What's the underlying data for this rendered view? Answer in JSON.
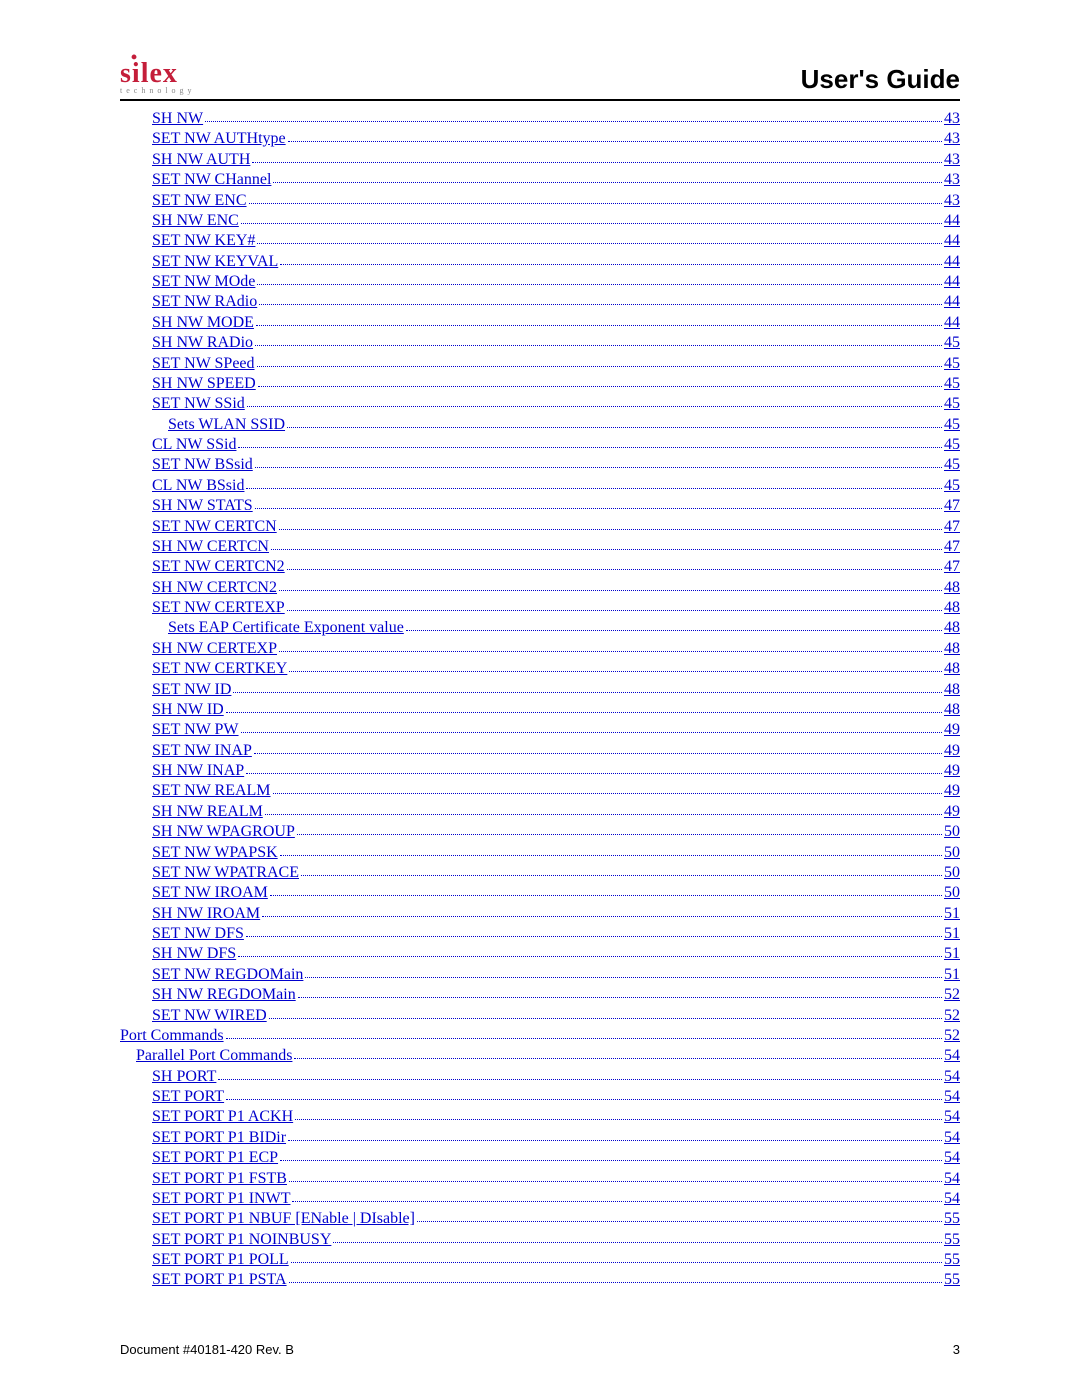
{
  "header": {
    "logo_text": "silex",
    "logo_sub": "technology",
    "title": "User's Guide"
  },
  "link_color": "#0000cc",
  "toc": [
    {
      "label": " SH NW ",
      "page": " 43",
      "indent": 2
    },
    {
      "label": " SET NW AUTHtype ",
      "page": " 43",
      "indent": 2
    },
    {
      "label": " SH NW AUTH ",
      "page": " 43",
      "indent": 2
    },
    {
      "label": " SET NW CHannel ",
      "page": " 43",
      "indent": 2
    },
    {
      "label": " SET NW ENC",
      "page": " 43",
      "indent": 2
    },
    {
      "label": " SH NW ENC ",
      "page": " 44",
      "indent": 2
    },
    {
      "label": " SET NW KEY# ",
      "page": " 44",
      "indent": 2
    },
    {
      "label": " SET NW KEYVAL ",
      "page": " 44",
      "indent": 2
    },
    {
      "label": " SET NW MOde ",
      "page": " 44",
      "indent": 2
    },
    {
      "label": " SET NW RAdio ",
      "page": " 44",
      "indent": 2
    },
    {
      "label": " SH NW MODE ",
      "page": " 44",
      "indent": 2
    },
    {
      "label": " SH NW RADio ",
      "page": " 45",
      "indent": 2
    },
    {
      "label": " SET NW SPeed ",
      "page": " 45",
      "indent": 2
    },
    {
      "label": " SH NW SPEED ",
      "page": " 45",
      "indent": 2
    },
    {
      "label": " SET NW SSid ",
      "page": " 45",
      "indent": 2
    },
    {
      "label": " Sets WLAN SSID",
      "page": " 45",
      "indent": 3
    },
    {
      "label": " CL NW SSid ",
      "page": " 45",
      "indent": 2
    },
    {
      "label": " SET NW BSsid ",
      "page": " 45",
      "indent": 2
    },
    {
      "label": " CL NW BSsid ",
      "page": " 45",
      "indent": 2
    },
    {
      "label": " SH NW STATS ",
      "page": " 47",
      "indent": 2
    },
    {
      "label": " SET NW CERTCN ",
      "page": " 47",
      "indent": 2
    },
    {
      "label": " SH NW CERTCN ",
      "page": " 47",
      "indent": 2
    },
    {
      "label": " SET NW CERTCN2",
      "page": " 47",
      "indent": 2
    },
    {
      "label": " SH NW CERTCN2",
      "page": " 48",
      "indent": 2
    },
    {
      "label": " SET NW CERTEXP ",
      "page": " 48",
      "indent": 2
    },
    {
      "label": " Sets EAP Certificate Exponent value",
      "page": " 48",
      "indent": 3
    },
    {
      "label": " SH NW CERTEXP ",
      "page": " 48",
      "indent": 2
    },
    {
      "label": " SET NW CERTKEY ",
      "page": " 48",
      "indent": 2
    },
    {
      "label": " SET NW ID ",
      "page": " 48",
      "indent": 2
    },
    {
      "label": " SH NW ID",
      "page": " 48",
      "indent": 2
    },
    {
      "label": " SET NW PW ",
      "page": " 49",
      "indent": 2
    },
    {
      "label": " SET NW INAP ",
      "page": " 49",
      "indent": 2
    },
    {
      "label": " SH NW INAP ",
      "page": " 49",
      "indent": 2
    },
    {
      "label": " SET NW REALM ",
      "page": " 49",
      "indent": 2
    },
    {
      "label": " SH NW REALM ",
      "page": " 49",
      "indent": 2
    },
    {
      "label": " SH NW WPAGROUP",
      "page": " 50",
      "indent": 2
    },
    {
      "label": " SET NW WPAPSK ",
      "page": " 50",
      "indent": 2
    },
    {
      "label": " SET NW WPATRACE ",
      "page": " 50",
      "indent": 2
    },
    {
      "label": " SET NW IROAM ",
      "page": " 50",
      "indent": 2
    },
    {
      "label": " SH NW IROAM",
      "page": " 51",
      "indent": 2
    },
    {
      "label": " SET NW DFS ",
      "page": " 51",
      "indent": 2
    },
    {
      "label": " SH NW DFS ",
      "page": " 51",
      "indent": 2
    },
    {
      "label": " SET NW REGDOMain ",
      "page": " 51",
      "indent": 2
    },
    {
      "label": " SH NW REGDOMain ",
      "page": " 52",
      "indent": 2
    },
    {
      "label": " SET NW WIRED",
      "page": " 52",
      "indent": 2
    },
    {
      "label": " Port Commands",
      "page": " 52",
      "indent": 0
    },
    {
      "label": " Parallel Port Commands",
      "page": " 54",
      "indent": 1
    },
    {
      "label": " SH PORT",
      "page": " 54",
      "indent": 2
    },
    {
      "label": " SET PORT",
      "page": " 54",
      "indent": 2
    },
    {
      "label": " SET PORT P1 ACKH ",
      "page": " 54",
      "indent": 2
    },
    {
      "label": " SET PORT P1 BIDir ",
      "page": " 54",
      "indent": 2
    },
    {
      "label": " SET PORT P1 ECP ",
      "page": " 54",
      "indent": 2
    },
    {
      "label": " SET PORT P1 FSTB ",
      "page": " 54",
      "indent": 2
    },
    {
      "label": " SET PORT P1 INWT",
      "page": " 54",
      "indent": 2
    },
    {
      "label": " SET PORT P1 NBUF [ENable | DIsable] ",
      "page": " 55",
      "indent": 2
    },
    {
      "label": " SET PORT P1 NOINBUSY ",
      "page": " 55",
      "indent": 2
    },
    {
      "label": " SET PORT P1 POLL",
      "page": " 55",
      "indent": 2
    },
    {
      "label": " SET PORT P1 PSTA ",
      "page": " 55",
      "indent": 2
    }
  ],
  "footer": {
    "doc_ref": "Document #40181-420  Rev. B",
    "page_num": "3"
  }
}
